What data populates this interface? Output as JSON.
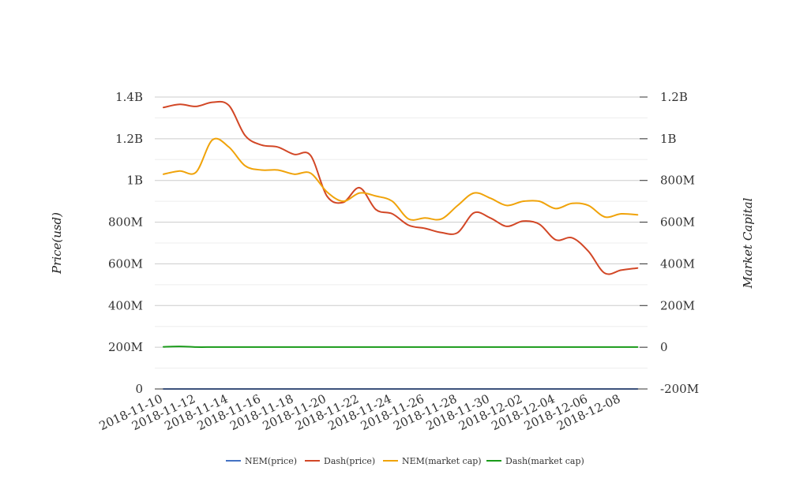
{
  "chart_data": {
    "type": "line",
    "left_axis": {
      "label": "Price(usd)",
      "ylim": [
        0,
        1400000000
      ],
      "tick_values": [
        0,
        200000000,
        400000000,
        600000000,
        800000000,
        1000000000,
        1200000000,
        1400000000
      ],
      "tick_labels": [
        "0",
        "200M",
        "400M",
        "600M",
        "800M",
        "1B",
        "1.2B",
        "1.4B"
      ]
    },
    "right_axis": {
      "label": "Market Capital",
      "ylim": [
        -200000000,
        1200000000
      ],
      "tick_values": [
        -200000000,
        0,
        200000000,
        400000000,
        600000000,
        800000000,
        1000000000,
        1200000000
      ],
      "tick_labels": [
        "-200M",
        "0",
        "200M",
        "400M",
        "600M",
        "800M",
        "1B",
        "1.2B"
      ]
    },
    "x_tick_labels": [
      "2018-11-10",
      "2018-11-12",
      "2018-11-14",
      "2018-11-16",
      "2018-11-18",
      "2018-11-20",
      "2018-11-22",
      "2018-11-24",
      "2018-11-26",
      "2018-11-28",
      "2018-11-30",
      "2018-12-02",
      "2018-12-04",
      "2018-12-06",
      "2018-12-08"
    ],
    "x": [
      "2018-11-10",
      "2018-11-11",
      "2018-11-12",
      "2018-11-13",
      "2018-11-14",
      "2018-11-15",
      "2018-11-16",
      "2018-11-17",
      "2018-11-18",
      "2018-11-19",
      "2018-11-20",
      "2018-11-21",
      "2018-11-22",
      "2018-11-23",
      "2018-11-24",
      "2018-11-25",
      "2018-11-26",
      "2018-11-27",
      "2018-11-28",
      "2018-11-29",
      "2018-11-30",
      "2018-12-01",
      "2018-12-02",
      "2018-12-03",
      "2018-12-04",
      "2018-12-05",
      "2018-12-06",
      "2018-12-07",
      "2018-12-08",
      "2018-12-09"
    ],
    "grid": true,
    "legend_position": "bottom",
    "series": [
      {
        "name": "NEM(price)",
        "axis": "left",
        "color": "#4472c4",
        "values": [
          0.24,
          0.24,
          0.24,
          0.24,
          0.24,
          0.23,
          0.22,
          0.22,
          0.21,
          0.2,
          0.18,
          0.17,
          0.18,
          0.17,
          0.17,
          0.16,
          0.15,
          0.15,
          0.16,
          0.17,
          0.17,
          0.16,
          0.16,
          0.16,
          0.15,
          0.15,
          0.14,
          0.13,
          0.13,
          0.13
        ]
      },
      {
        "name": "Dash(price)",
        "axis": "left",
        "color": "#d24726",
        "values": [
          1350000000,
          1365000000,
          1355000000,
          1375000000,
          1360000000,
          1215000000,
          1170000000,
          1160000000,
          1125000000,
          1120000000,
          925000000,
          895000000,
          965000000,
          860000000,
          840000000,
          785000000,
          770000000,
          750000000,
          750000000,
          845000000,
          820000000,
          780000000,
          805000000,
          790000000,
          715000000,
          725000000,
          660000000,
          555000000,
          570000000,
          580000000
        ]
      },
      {
        "name": "NEM(market cap)",
        "axis": "right",
        "color": "#f0a30a",
        "values": [
          830000000,
          845000000,
          840000000,
          995000000,
          960000000,
          870000000,
          850000000,
          850000000,
          830000000,
          835000000,
          745000000,
          700000000,
          740000000,
          725000000,
          700000000,
          615000000,
          620000000,
          615000000,
          680000000,
          740000000,
          715000000,
          680000000,
          700000000,
          700000000,
          665000000,
          690000000,
          680000000,
          625000000,
          640000000,
          635000000
        ]
      },
      {
        "name": "Dash(market cap)",
        "axis": "right",
        "color": "#1a9b1a",
        "values": [
          2000000,
          4000000,
          1000000,
          1000000,
          1000000,
          1000000,
          1000000,
          1000000,
          1000000,
          1000000,
          1000000,
          1000000,
          1000000,
          1000000,
          1000000,
          1000000,
          1000000,
          1000000,
          1000000,
          1000000,
          1000000,
          1000000,
          1000000,
          1000000,
          1000000,
          1000000,
          1000000,
          1000000,
          1000000,
          1000000
        ]
      }
    ]
  }
}
